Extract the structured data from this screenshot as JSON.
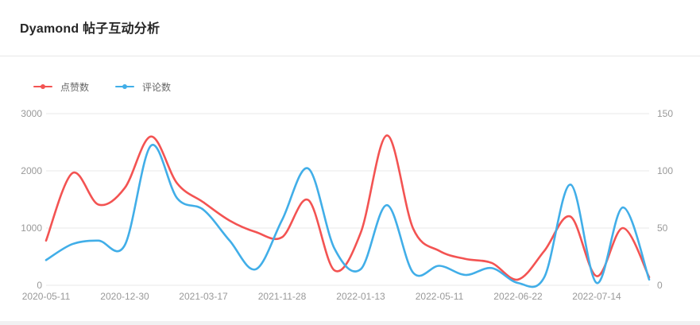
{
  "header": {
    "title": "Dyamond 帖子互动分析"
  },
  "chart_data": {
    "type": "line",
    "title": "Dyamond 帖子互动分析",
    "smooth": true,
    "legend": {
      "position": "top-left",
      "entries": [
        "点赞数",
        "评论数"
      ]
    },
    "x_axis": {
      "visible_labels": [
        "2020-05-11",
        "2020-12-30",
        "2021-03-17",
        "2021-11-28",
        "2022-01-13",
        "2022-05-11",
        "2022-06-22",
        "2022-07-14"
      ],
      "label_interval": 3,
      "num_points": 24
    },
    "left_axis": {
      "min": 0,
      "max": 3000,
      "ticks": [
        0,
        1000,
        2000,
        3000
      ]
    },
    "right_axis": {
      "min": 0,
      "max": 150,
      "ticks": [
        0,
        50,
        100,
        150
      ]
    },
    "grid": {
      "horizontal_lines": true,
      "vertical_lines": false
    },
    "series": [
      {
        "name": "点赞数",
        "axis": "left",
        "color": "#f35352",
        "values": [
          780,
          1960,
          1410,
          1700,
          2600,
          1780,
          1450,
          1130,
          930,
          840,
          1490,
          260,
          920,
          2620,
          990,
          600,
          460,
          390,
          100,
          600,
          1200,
          160,
          1000,
          140
        ]
      },
      {
        "name": "评论数",
        "axis": "right",
        "color": "#41aee8",
        "values": [
          22,
          36,
          39,
          35,
          122,
          76,
          66,
          39,
          14,
          57,
          102,
          32,
          14,
          70,
          11,
          17,
          9,
          15,
          2,
          7,
          88,
          2,
          68,
          5
        ]
      }
    ],
    "colors": {
      "grid_line": "#e8e8e8",
      "axis_label": "#999999",
      "title_text": "#262626",
      "legend_text": "#666666",
      "card_background": "#ffffff",
      "page_strip": "#f1f1f2"
    }
  }
}
